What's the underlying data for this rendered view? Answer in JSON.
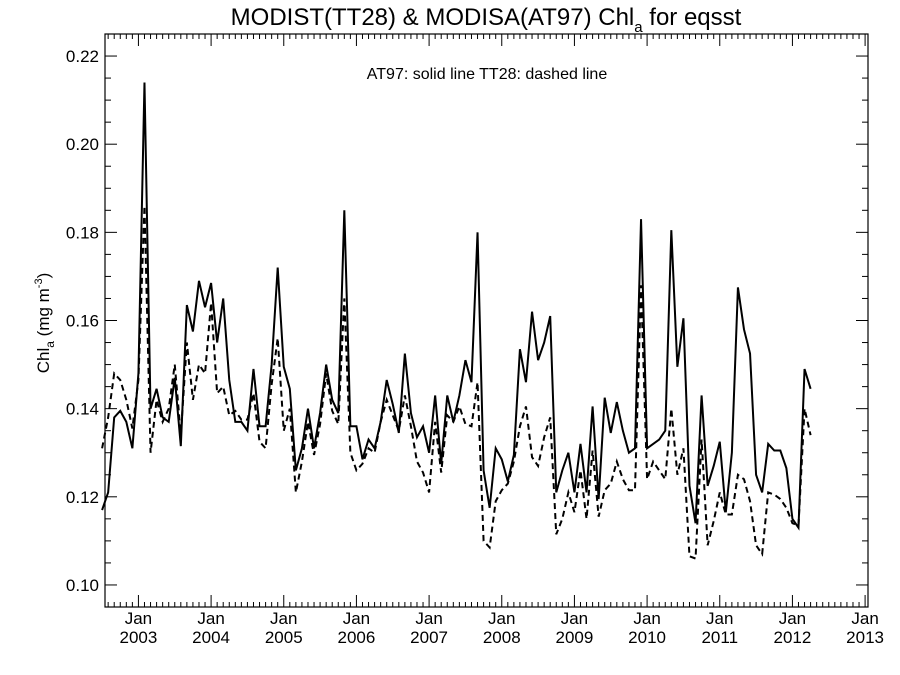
{
  "chart_data": {
    "type": "line",
    "title": {
      "prefix": "MODIST(TT28) & MODISA(AT97)  Chl",
      "subscript": "a",
      "suffix": " for eqsst"
    },
    "ylabel": {
      "prefix": "Chl",
      "subscript": "a",
      "middle": " (mg m",
      "superscript": "-3",
      "suffix": ")"
    },
    "annotation": "AT97: solid line   TT28: dashed line",
    "ylim": [
      0.095,
      0.225
    ],
    "xlim": [
      2002.54,
      2013.04
    ],
    "y_ticks": [
      "0.10",
      "0.12",
      "0.14",
      "0.16",
      "0.18",
      "0.20",
      "0.22"
    ],
    "x_ticks": [
      {
        "month": "Jan",
        "year": "2003",
        "x": 2003
      },
      {
        "month": "Jan",
        "year": "2004",
        "x": 2004
      },
      {
        "month": "Jan",
        "year": "2005",
        "x": 2005
      },
      {
        "month": "Jan",
        "year": "2006",
        "x": 2006
      },
      {
        "month": "Jan",
        "year": "2007",
        "x": 2007
      },
      {
        "month": "Jan",
        "year": "2008",
        "x": 2008
      },
      {
        "month": "Jan",
        "year": "2009",
        "x": 2009
      },
      {
        "month": "Jan",
        "year": "2010",
        "x": 2010
      },
      {
        "month": "Jan",
        "year": "2011",
        "x": 2011
      },
      {
        "month": "Jan",
        "year": "2012",
        "x": 2012
      },
      {
        "month": "Jan",
        "year": "2013",
        "x": 2013
      }
    ],
    "x_start": "2002-07",
    "series": [
      {
        "name": "AT97",
        "style": "solid",
        "color": "#000000",
        "values": [
          0.117,
          0.121,
          0.138,
          0.1395,
          0.137,
          0.131,
          0.148,
          0.214,
          0.14,
          0.1445,
          0.138,
          0.137,
          0.147,
          0.1315,
          0.1635,
          0.1575,
          0.169,
          0.163,
          0.1685,
          0.155,
          0.165,
          0.1465,
          0.137,
          0.137,
          0.135,
          0.149,
          0.136,
          0.136,
          0.15,
          0.172,
          0.1495,
          0.1445,
          0.126,
          0.131,
          0.14,
          0.131,
          0.139,
          0.15,
          0.142,
          0.139,
          0.185,
          0.136,
          0.136,
          0.1285,
          0.133,
          0.131,
          0.137,
          0.1465,
          0.141,
          0.1345,
          0.1525,
          0.139,
          0.1335,
          0.136,
          0.13,
          0.143,
          0.1275,
          0.143,
          0.137,
          0.143,
          0.151,
          0.146,
          0.18,
          0.126,
          0.1175,
          0.131,
          0.1285,
          0.1235,
          0.1295,
          0.1535,
          0.146,
          0.162,
          0.151,
          0.155,
          0.161,
          0.121,
          0.126,
          0.13,
          0.121,
          0.132,
          0.121,
          0.1405,
          0.1195,
          0.1425,
          0.1345,
          0.1415,
          0.135,
          0.13,
          0.131,
          0.183,
          0.131,
          0.132,
          0.133,
          0.135,
          0.1805,
          0.1495,
          0.1605,
          0.1225,
          0.114,
          0.143,
          0.1225,
          0.127,
          0.1325,
          0.1165,
          0.13,
          0.1675,
          0.158,
          0.1525,
          0.125,
          0.121,
          0.132,
          0.1305,
          0.1305,
          0.1265,
          0.115,
          0.113,
          0.149,
          0.1445
        ]
      },
      {
        "name": "TT28",
        "style": "dashed",
        "color": "#000000",
        "values": [
          0.131,
          0.138,
          0.148,
          0.1465,
          0.142,
          0.1355,
          0.1465,
          0.186,
          0.13,
          0.142,
          0.137,
          0.14,
          0.15,
          0.134,
          0.155,
          0.142,
          0.15,
          0.148,
          0.164,
          0.1435,
          0.145,
          0.1385,
          0.1395,
          0.1375,
          0.1375,
          0.1435,
          0.1325,
          0.131,
          0.1455,
          0.156,
          0.135,
          0.14,
          0.121,
          0.128,
          0.137,
          0.1295,
          0.1365,
          0.148,
          0.1395,
          0.1365,
          0.165,
          0.13,
          0.126,
          0.1275,
          0.131,
          0.13,
          0.137,
          0.142,
          0.1385,
          0.135,
          0.143,
          0.136,
          0.128,
          0.1255,
          0.121,
          0.137,
          0.1255,
          0.1385,
          0.137,
          0.1405,
          0.1365,
          0.136,
          0.146,
          0.11,
          0.1085,
          0.119,
          0.1215,
          0.123,
          0.128,
          0.136,
          0.1405,
          0.129,
          0.127,
          0.1335,
          0.138,
          0.1115,
          0.115,
          0.121,
          0.1165,
          0.126,
          0.115,
          0.1305,
          0.1155,
          0.1215,
          0.123,
          0.128,
          0.124,
          0.1215,
          0.1215,
          0.168,
          0.124,
          0.128,
          0.126,
          0.124,
          0.14,
          0.125,
          0.131,
          0.1065,
          0.106,
          0.133,
          0.109,
          0.1145,
          0.121,
          0.116,
          0.116,
          0.125,
          0.124,
          0.119,
          0.109,
          0.107,
          0.121,
          0.1205,
          0.1195,
          0.1175,
          0.114,
          0.1135,
          0.14,
          0.134
        ]
      }
    ]
  }
}
